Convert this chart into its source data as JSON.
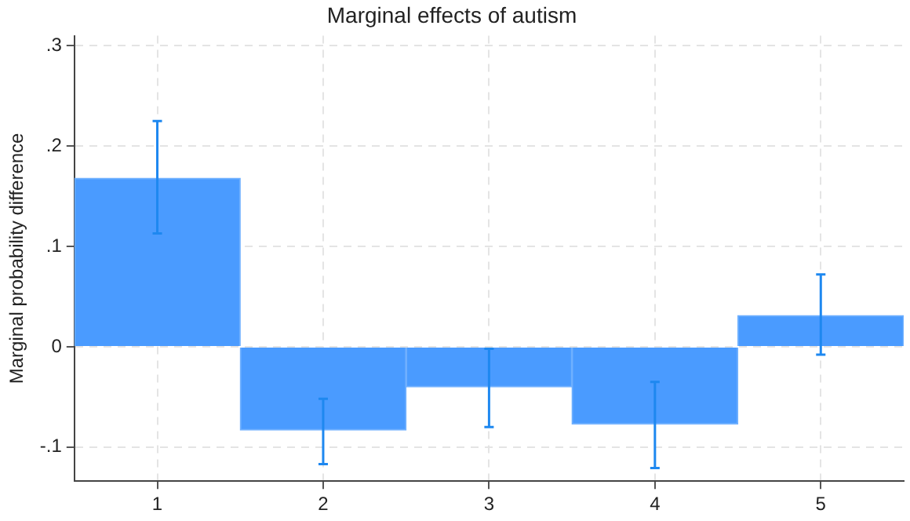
{
  "chart_data": {
    "type": "bar",
    "title": "Marginal effects of autism",
    "ylabel": "Marginal probability difference",
    "categories": [
      "1",
      "2",
      "3",
      "4",
      "5"
    ],
    "values": [
      0.168,
      -0.083,
      -0.04,
      -0.077,
      0.031
    ],
    "errors": [
      [
        0.113,
        0.225
      ],
      [
        -0.117,
        -0.052
      ],
      [
        -0.08,
        -0.002
      ],
      [
        -0.121,
        -0.035
      ],
      [
        -0.008,
        0.072
      ]
    ],
    "color": "#4a9bff",
    "ylim": [
      -0.134,
      0.31
    ],
    "yticks": [
      {
        "value": -0.1,
        "label": "-.1"
      },
      0,
      {
        "value": 0.1,
        "label": ".1"
      },
      {
        "value": 0.2,
        "label": ".2"
      },
      {
        "value": 0.3,
        "label": ".3"
      }
    ],
    "grid": true,
    "legend": false
  }
}
